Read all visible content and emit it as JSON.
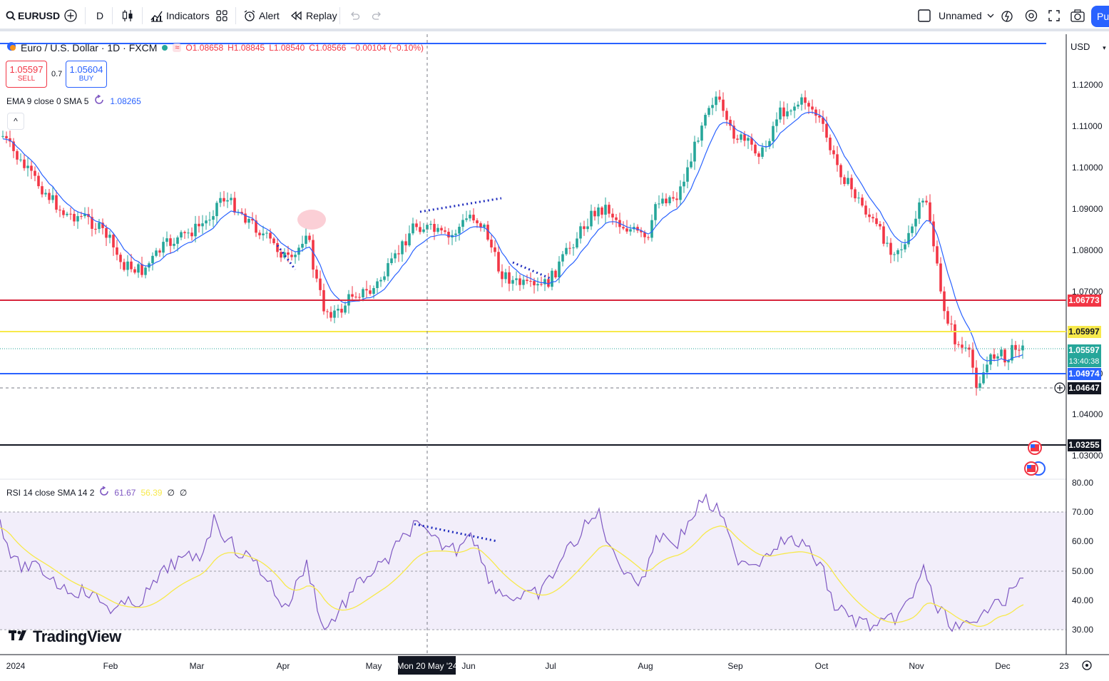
{
  "toolbar": {
    "symbol": "EURUSD",
    "interval": "D",
    "indicators_label": "Indicators",
    "alert_label": "Alert",
    "replay_label": "Replay",
    "layout_name": "Unnamed",
    "publish_label": "Pu"
  },
  "legend": {
    "title": "Euro / U.S. Dollar · 1D · FXCM",
    "open": "O1.08658",
    "high": "H1.08845",
    "low": "L1.08540",
    "close": "C1.08566",
    "change": "−0.00104 (−0.10%)"
  },
  "trade": {
    "sell_price": "1.05597",
    "sell_label": "SELL",
    "buy_price": "1.05604",
    "buy_label": "BUY",
    "spread": "0.7"
  },
  "ema": {
    "label": "EMA 9 close 0 SMA 5",
    "value": "1.08265"
  },
  "rsi": {
    "label": "RSI 14 close SMA 14 2",
    "value": "61.67",
    "sma_value": "56.39",
    "extra1": "∅",
    "extra2": "∅"
  },
  "price_axis": {
    "currency": "USD",
    "ticks": [
      "1.12000",
      "1.11000",
      "1.10000",
      "1.09000",
      "1.08000",
      "1.07000",
      "1.05000",
      "1.04000",
      "1.03000"
    ],
    "tags": [
      {
        "text": "1.06773",
        "bg": "#f23645",
        "fg": "#ffffff"
      },
      {
        "text": "1.05997",
        "bg": "#f7e94b",
        "fg": "#131722"
      },
      {
        "text": "1.05597",
        "sub": "13:40:38",
        "bg": "#26a69a",
        "fg": "#ffffff"
      },
      {
        "text": "1.04974",
        "bg": "#2962ff",
        "fg": "#ffffff"
      },
      {
        "text": "1.04647",
        "bg": "#131722",
        "fg": "#ffffff"
      },
      {
        "text": "1.03255",
        "bg": "#131722",
        "fg": "#ffffff"
      }
    ]
  },
  "rsi_axis": {
    "ticks": [
      "80.00",
      "70.00",
      "60.00",
      "50.00",
      "40.00",
      "30.00"
    ]
  },
  "time_axis": {
    "labels": [
      "2024",
      "Feb",
      "Mar",
      "Apr",
      "May",
      "Jun",
      "Jul",
      "Aug",
      "Sep",
      "Oct",
      "Nov",
      "Dec",
      "23"
    ],
    "crosshair_label": "Mon 20 May '24"
  },
  "branding": {
    "logo_text": "TradingView"
  },
  "colors": {
    "up": "#26a69a",
    "down": "#f23645",
    "ema": "#2962ff",
    "rsi": "#7e57c2",
    "rsi_sma": "#f7e94b",
    "rsi_band": "#f2eefa"
  }
}
